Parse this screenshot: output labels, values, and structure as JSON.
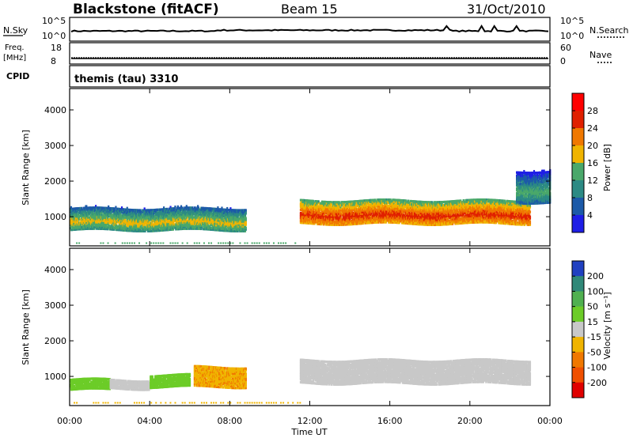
{
  "header": {
    "station": "Blackstone (fitACF)",
    "beam": "Beam 15",
    "date": "31/Oct/2010"
  },
  "strips": {
    "nsky_label": "N.Sky",
    "nsearch_label": "N.Search",
    "nsky_ticks": [
      "10^5",
      "10^0"
    ],
    "nsearch_ticks": [
      "10^5",
      "10^0"
    ],
    "freq_label": "Freq.",
    "freq_unit": "[MHz]",
    "freq_ticks": [
      "18",
      "8"
    ],
    "nave_label": "Nave",
    "nave_ticks": [
      "60",
      "0"
    ],
    "cpid_label": "CPID",
    "cpid_value": "themis (tau) 3310"
  },
  "axes": {
    "xlabel": "Time UT",
    "ylabel": "Slant Range [km]",
    "x_ticks": [
      "00:00",
      "04:00",
      "08:00",
      "12:00",
      "16:00",
      "20:00",
      "00:00"
    ],
    "y_ticks": [
      "1000",
      "2000",
      "3000",
      "4000"
    ]
  },
  "colorbars": {
    "power": {
      "label": "Power [dB]",
      "ticks": [
        "4",
        "8",
        "12",
        "16",
        "20",
        "24",
        "28"
      ],
      "colors": [
        "#1e1ee6",
        "#1c5aa8",
        "#2c8a84",
        "#4aa86a",
        "#f0b400",
        "#f07800",
        "#e02000",
        "#ff0000"
      ]
    },
    "velocity": {
      "label": "Velocity [m s⁻¹]",
      "ticks": [
        "200",
        "100",
        "50",
        "15",
        "-15",
        "-50",
        "-100",
        "-200"
      ],
      "colors": [
        "#2040c0",
        "#308878",
        "#50b050",
        "#6ccc28",
        "#c8c8c8",
        "#f0b400",
        "#f07800",
        "#f05000",
        "#e00000"
      ]
    }
  },
  "chart_data": [
    {
      "type": "heatmap",
      "title": "Power",
      "xlabel": "Time UT",
      "ylabel": "Slant Range [km]",
      "xlim": [
        0,
        24
      ],
      "ylim": [
        180,
        4600
      ],
      "colorbar": {
        "label": "Power [dB]",
        "range": [
          0,
          32
        ]
      },
      "regions": [
        {
          "t": [
            0.0,
            8.8
          ],
          "range_km": [
            620,
            1250
          ],
          "power_db": 10
        },
        {
          "t": [
            11.5,
            23.0
          ],
          "range_km": [
            800,
            1450
          ],
          "power_db": 18
        },
        {
          "t": [
            22.3,
            24.0
          ],
          "range_km": [
            1400,
            2300
          ],
          "power_db": 6
        }
      ]
    },
    {
      "type": "heatmap",
      "title": "Velocity",
      "xlabel": "Time UT",
      "ylabel": "Slant Range [km]",
      "xlim": [
        0,
        24
      ],
      "ylim": [
        180,
        4600
      ],
      "colorbar": {
        "label": "Velocity [m s⁻¹]",
        "range": [
          -250,
          250
        ]
      },
      "regions": [
        {
          "t": [
            0.0,
            2.0
          ],
          "range_km": [
            620,
            900
          ],
          "velocity": 40
        },
        {
          "t": [
            2.0,
            4.0
          ],
          "range_km": [
            650,
            900
          ],
          "velocity": 0
        },
        {
          "t": [
            4.0,
            6.0
          ],
          "range_km": [
            700,
            1050
          ],
          "velocity": 40
        },
        {
          "t": [
            6.2,
            8.8
          ],
          "range_km": [
            700,
            1250
          ],
          "velocity": -45
        },
        {
          "t": [
            11.5,
            23.0
          ],
          "range_km": [
            800,
            1450
          ],
          "velocity": 0
        }
      ]
    }
  ]
}
